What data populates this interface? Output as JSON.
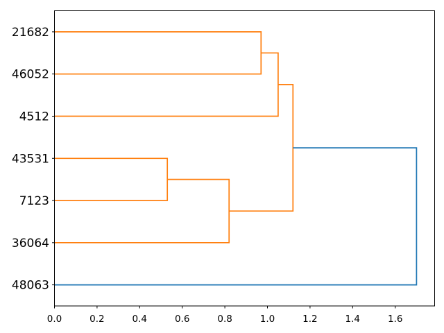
{
  "figure": {
    "title": "",
    "background_color": "#ffffff"
  },
  "chart_data": {
    "type": "line",
    "variant": "dendrogram",
    "orientation": "leaves-left-root-right",
    "title": "",
    "xlabel": "",
    "ylabel": "",
    "grid": false,
    "legend": null,
    "leaves_top_to_bottom": [
      "21682",
      "46052",
      "4512",
      "43531",
      "7123",
      "36064",
      "48063"
    ],
    "merges": [
      {
        "id": "m1",
        "children": [
          "21682",
          "46052"
        ],
        "height": 0.97,
        "color": "cluster"
      },
      {
        "id": "m2",
        "children": [
          "m1",
          "4512"
        ],
        "height": 1.05,
        "color": "cluster"
      },
      {
        "id": "m3",
        "children": [
          "43531",
          "7123"
        ],
        "height": 0.53,
        "color": "cluster"
      },
      {
        "id": "m4",
        "children": [
          "m3",
          "36064"
        ],
        "height": 0.82,
        "color": "cluster"
      },
      {
        "id": "m5",
        "children": [
          "m2",
          "m4"
        ],
        "height": 1.12,
        "color": "cluster"
      },
      {
        "id": "m6",
        "children": [
          "m5",
          "48063"
        ],
        "height": 1.7,
        "color": "root"
      }
    ],
    "x_axis": {
      "lim": [
        0,
        1.785
      ],
      "ticks": [
        {
          "v": 0.0,
          "label": "0.0"
        },
        {
          "v": 0.2,
          "label": "0.2"
        },
        {
          "v": 0.4,
          "label": "0.4"
        },
        {
          "v": 0.6,
          "label": "0.6"
        },
        {
          "v": 0.8,
          "label": "0.8"
        },
        {
          "v": 1.0,
          "label": "1.0"
        },
        {
          "v": 1.2,
          "label": "1.2"
        },
        {
          "v": 1.4,
          "label": "1.4"
        },
        {
          "v": 1.6,
          "label": "1.6"
        }
      ]
    },
    "y_axis": {
      "lim": [
        0,
        70
      ],
      "tick_labels": [
        "21682",
        "46052",
        "4512",
        "43531",
        "7123",
        "36064",
        "48063"
      ]
    },
    "colors": {
      "cluster": "#ff7f0e",
      "root": "#1f77b4",
      "axes": "#000000",
      "text": "#000000",
      "background": "#ffffff"
    }
  }
}
